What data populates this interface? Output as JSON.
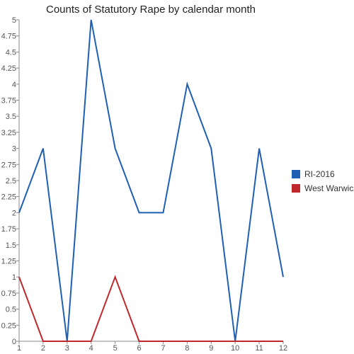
{
  "chart_data": {
    "type": "line",
    "title": "Counts of Statutory Rape by calendar month",
    "x": [
      1,
      2,
      3,
      4,
      5,
      6,
      7,
      8,
      9,
      10,
      11,
      12
    ],
    "x_tick_labels": [
      "1",
      "2",
      "3",
      "4",
      "5",
      "6",
      "7",
      "8",
      "9",
      "10",
      "11",
      "12"
    ],
    "ylim": [
      0,
      5
    ],
    "y_ticks": [
      0,
      0.25,
      0.5,
      0.75,
      1,
      1.25,
      1.5,
      1.75,
      2,
      2.25,
      2.5,
      2.75,
      3,
      3.25,
      3.5,
      3.75,
      4,
      4.25,
      4.5,
      4.75,
      5
    ],
    "y_tick_labels": [
      "0",
      "0.25",
      "0.5",
      "0.75",
      "1",
      "1.25",
      "1.5",
      "1.75",
      "2",
      "2.25",
      "2.5",
      "2.75",
      "3",
      "3.25",
      "3.5",
      "3.75",
      "4",
      "4.25",
      "4.5",
      "4.75",
      "5"
    ],
    "grid": false,
    "legend_position": "right",
    "series": [
      {
        "name": "RI-2016",
        "color": "#1f5fb4",
        "values": [
          2,
          3,
          0,
          5,
          3,
          2,
          2,
          4,
          3,
          0,
          3,
          1
        ]
      },
      {
        "name": "West Warwick",
        "color": "#c0282d",
        "values": [
          1,
          0,
          0,
          0,
          1,
          0,
          0,
          0,
          0,
          0,
          0,
          0
        ]
      }
    ]
  }
}
